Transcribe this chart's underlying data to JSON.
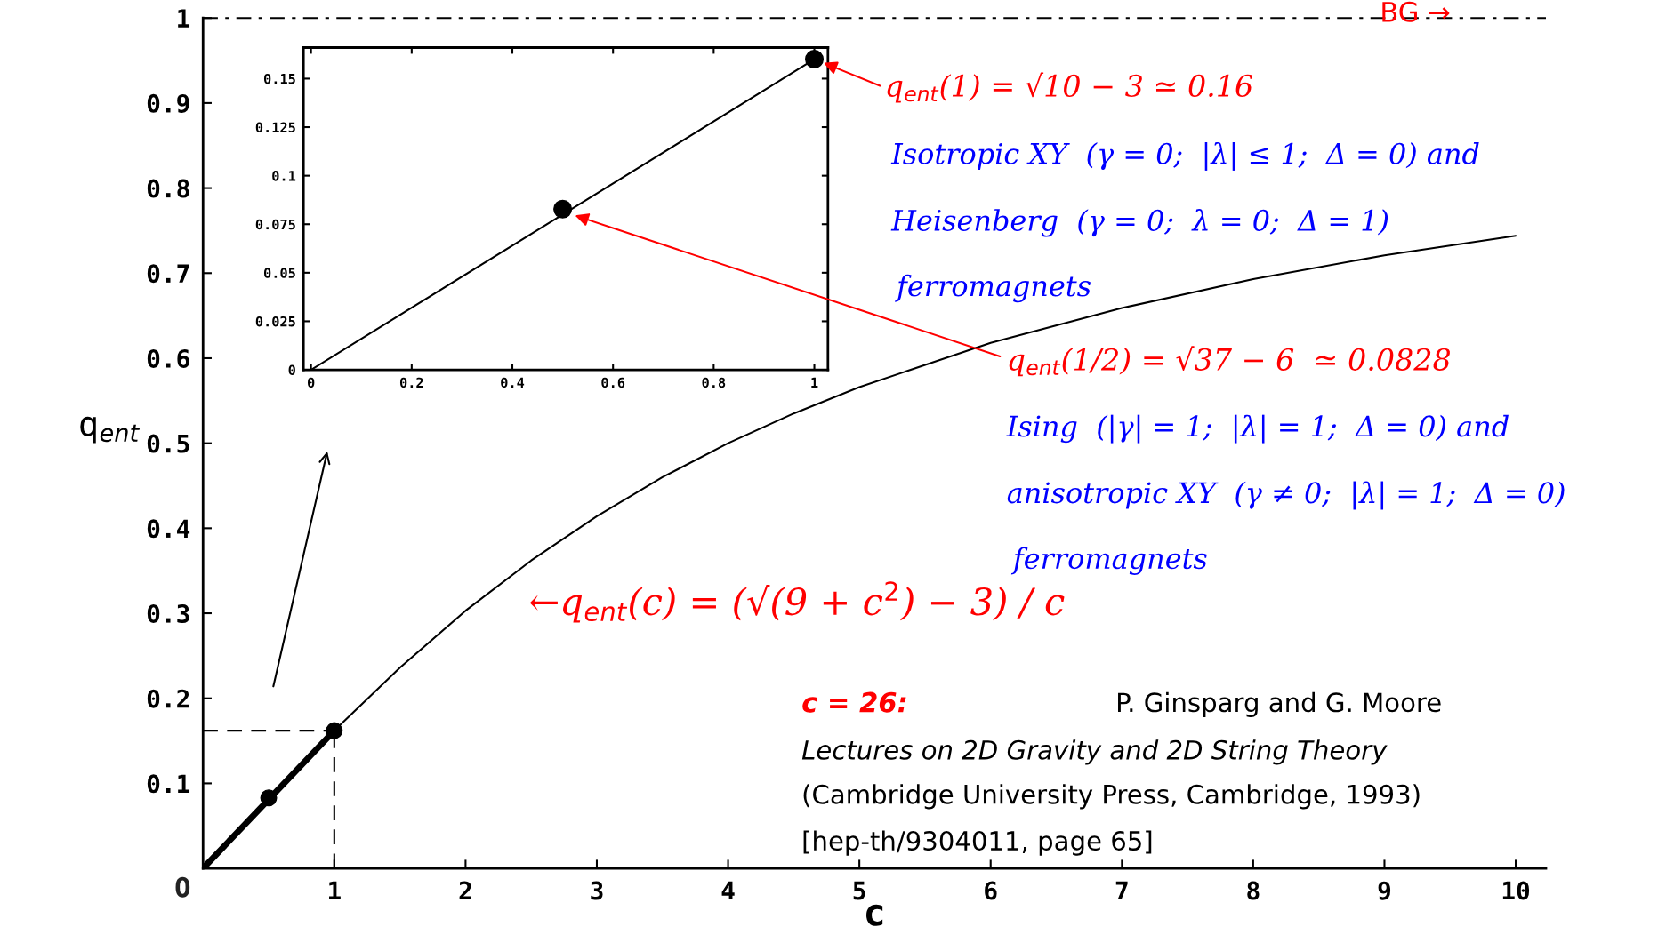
{
  "chart_data": [
    {
      "type": "line",
      "xlabel": "c",
      "ylabel": "q$_{ent}$",
      "xlim": [
        0,
        10.23
      ],
      "ylim": [
        0,
        1
      ],
      "xticks": [
        1,
        2,
        3,
        4,
        5,
        6,
        7,
        8,
        9,
        10
      ],
      "yticks": [
        0.1,
        0.2,
        0.3,
        0.4,
        0.5,
        0.6,
        0.7,
        0.8,
        0.9,
        1
      ],
      "series": [
        {
          "color": "#000000",
          "x": [
            0,
            0.5,
            1,
            1.5,
            2,
            2.5,
            3,
            3.5,
            4,
            4.5,
            5,
            6,
            7,
            8,
            9,
            10
          ],
          "values": [
            0,
            0.083,
            0.162,
            0.236,
            0.303,
            0.362,
            0.414,
            0.46,
            0.5,
            0.535,
            0.566,
            0.618,
            0.659,
            0.693,
            0.721,
            0.744
          ]
        },
        {
          "color": "#000000",
          "x": [
            0,
            1
          ],
          "values": [
            0,
            0.162
          ]
        },
        {
          "type": "scatter",
          "color": "#000000",
          "marker": "circle",
          "x": [
            0.5,
            1
          ],
          "values": [
            0.083,
            0.162
          ]
        }
      ],
      "ref_lines": [
        {
          "axis": "x",
          "value": 1,
          "line_style": "dashed",
          "color": "#000000"
        },
        {
          "axis": "y",
          "value": 0.162,
          "line_style": "dashed",
          "color": "#000000"
        },
        {
          "axis": "y",
          "value": 1,
          "line_style": "dashdot",
          "color": "#000000"
        }
      ],
      "annotations": [
        "BG →",
        "←q$_{ent}$(c) = (√(9 + c$^{2}$) − 3) / c",
        "c = 26:",
        "P. Ginsparg and G. Moore",
        "Lectures on 2D Gravity and 2D String Theory",
        "(Cambridge University Press, Cambridge, 1993)",
        "[hep-th/9304011, page 65]",
        "O"
      ]
    },
    {
      "type": "line",
      "xlim": [
        -0.015,
        1.027
      ],
      "ylim": [
        0,
        0.166
      ],
      "xticks": [
        0,
        0.2,
        0.4,
        0.6,
        0.8,
        1
      ],
      "yticks": [
        0,
        0.025,
        0.05,
        0.075,
        0.1,
        0.125,
        0.15
      ],
      "series": [
        {
          "color": "#000000",
          "x": [
            0,
            1
          ],
          "values": [
            0,
            0.16
          ]
        },
        {
          "type": "scatter",
          "color": "#000000",
          "marker": "circle",
          "x": [
            0.5,
            1
          ],
          "values": [
            0.0828,
            0.16
          ]
        }
      ],
      "annotations": [
        {
          "text": "q$_{ent}$(1) = √10 − 3 ≃ 0.16",
          "x": 1,
          "y": 0.16
        },
        "Isotropic XY  (γ = 0;  |λ| ≤ 1;  Δ = 0) and",
        "Heisenberg  (γ = 0;  λ = 0;  Δ = 1)",
        "ferromagnets",
        "q$_{ent}$(1/2) = √37 − 6  ≃ 0.0828",
        "Ising  (|γ| = 1;  |λ| = 1;  Δ = 0) and",
        "anisotropic XY  (γ ≠ 0;  |λ| = 1;  Δ = 0)",
        "ferromagnets"
      ]
    }
  ]
}
